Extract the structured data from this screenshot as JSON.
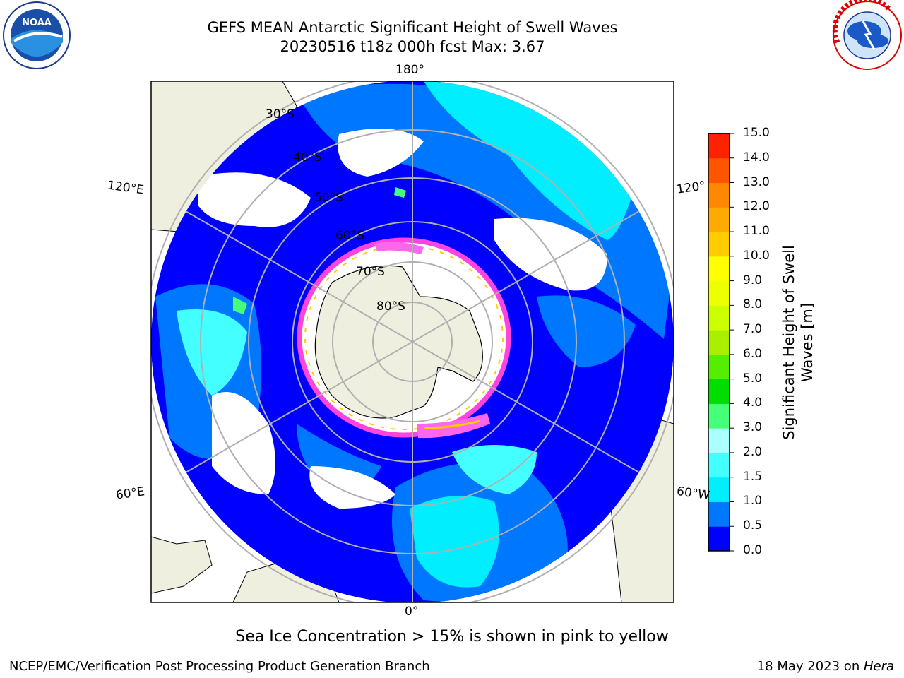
{
  "header": {
    "title_line1": "GEFS MEAN Antarctic Significant Height of Swell Waves",
    "title_line2": "20230516 t18z 000h fcst   Max: 3.67"
  },
  "map": {
    "projection": "south polar stereographic",
    "lon_labels": {
      "top": "180°",
      "bottom": "0°",
      "upper_left": "120°E",
      "upper_right": "120°",
      "lower_left": "60°E",
      "lower_right": "60°W"
    },
    "lat_labels": [
      "30°S",
      "40°S",
      "50°S",
      "60°S",
      "70°S",
      "80°S"
    ],
    "colors": {
      "ocean_low": "#0000ff",
      "land": "#efefdf",
      "ice_edge": "#ff44dd"
    }
  },
  "colorbar": {
    "label_line1": "Significant Height of Swell",
    "label_line2": "Waves [m]",
    "ticks": [
      "15.0",
      "14.0",
      "13.0",
      "12.0",
      "11.0",
      "10.0",
      "9.0",
      "8.0",
      "7.0",
      "6.0",
      "5.0",
      "4.0",
      "3.0",
      "2.0",
      "1.5",
      "1.0",
      "0.5",
      "0.0"
    ],
    "colors_bottom_to_top": [
      "#0000ff",
      "#0077ff",
      "#00eeff",
      "#44ffff",
      "#aaffff",
      "#44ff77",
      "#00dd00",
      "#55ee00",
      "#aaee00",
      "#ccff00",
      "#eeff00",
      "#ffff00",
      "#ffcc00",
      "#ffaa00",
      "#ff8800",
      "#ff5500",
      "#ff2200"
    ]
  },
  "caption": "Sea Ice Concentration > 15% is shown in pink to yellow",
  "footer": {
    "left": "NCEP/EMC/Verification Post Processing Product Generation Branch",
    "date": "18 May 2023 on ",
    "machine": "Hera"
  },
  "logos": {
    "left": "NOAA",
    "right": "NATIONAL WEATHER SERVICE"
  }
}
